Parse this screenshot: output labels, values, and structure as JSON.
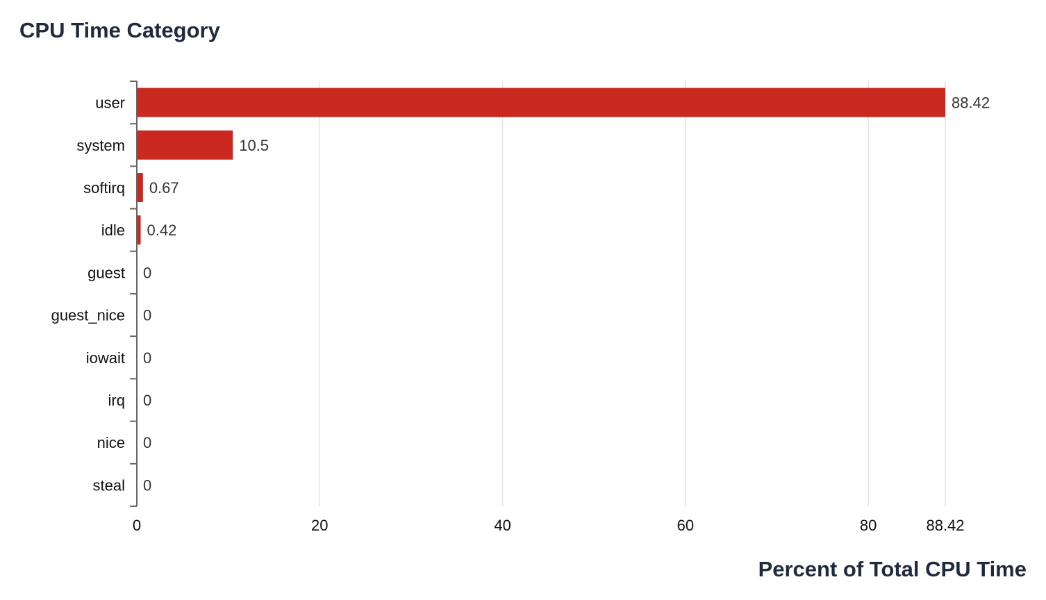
{
  "chart_data": {
    "type": "bar",
    "orientation": "horizontal",
    "title": "CPU Time Category",
    "xlabel": "Percent of Total CPU Time",
    "ylabel": "",
    "categories": [
      "user",
      "system",
      "softirq",
      "idle",
      "guest",
      "guest_nice",
      "iowait",
      "irq",
      "nice",
      "steal"
    ],
    "values": [
      88.42,
      10.5,
      0.67,
      0.42,
      0,
      0,
      0,
      0,
      0,
      0
    ],
    "value_labels": [
      "88.42",
      "10.5",
      "0.67",
      "0.42",
      "0",
      "0",
      "0",
      "0",
      "0",
      "0"
    ],
    "xlim": [
      0,
      88.42
    ],
    "x_ticks": [
      0,
      20,
      40,
      60,
      80,
      88.42
    ],
    "x_tick_labels": [
      "0",
      "20",
      "40",
      "60",
      "80",
      "88.42"
    ],
    "grid": "vertical",
    "legend": "none",
    "bar_color": "#c9291e"
  }
}
